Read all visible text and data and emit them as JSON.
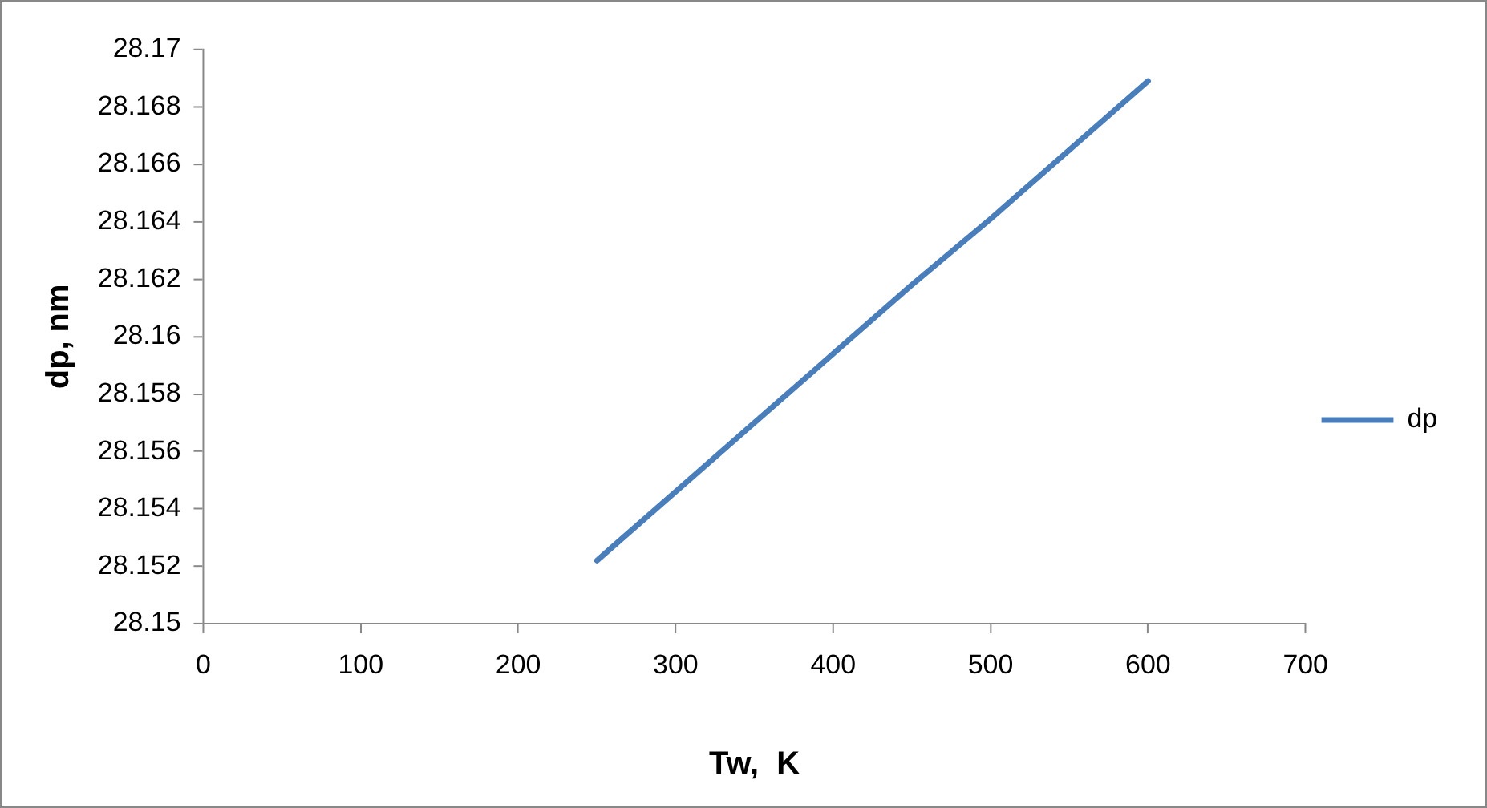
{
  "chart_data": {
    "type": "line",
    "xlabel": "Tw,  K",
    "ylabel": "dp, nm",
    "series": [
      {
        "name": "dp",
        "color": "#4a7ebb",
        "x": [
          250,
          300,
          350,
          400,
          450,
          500,
          550,
          600
        ],
        "values": [
          28.1522,
          28.1546,
          28.157,
          28.1594,
          28.1618,
          28.1641,
          28.1665,
          28.1689
        ]
      }
    ],
    "xlim": [
      0,
      700
    ],
    "xticks": [
      0,
      100,
      200,
      300,
      400,
      500,
      600,
      700
    ],
    "ylim": [
      28.15,
      28.17
    ],
    "yticks": [
      28.15,
      28.152,
      28.154,
      28.156,
      28.158,
      28.16,
      28.162,
      28.164,
      28.166,
      28.168,
      28.17
    ],
    "grid": false,
    "legend": "right",
    "marker": "none",
    "line_style": "solid"
  }
}
